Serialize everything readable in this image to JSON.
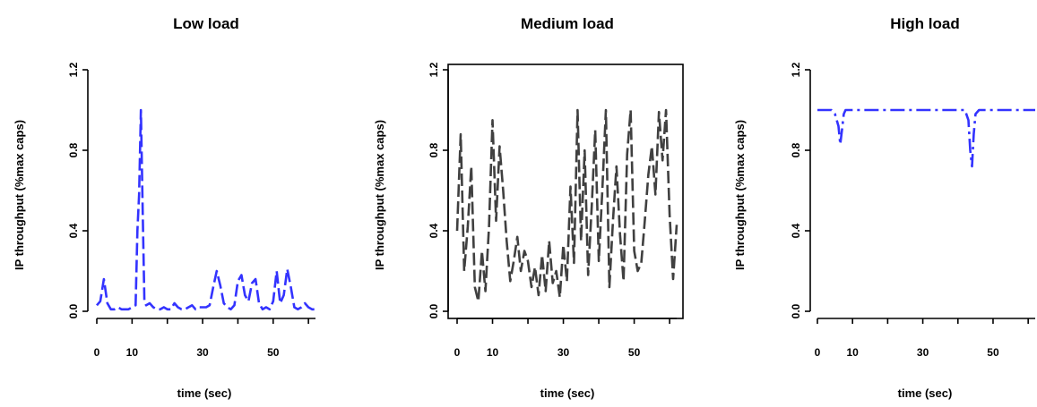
{
  "chart_data": [
    {
      "type": "line",
      "title": "Low load",
      "xlabel": "time (sec)",
      "ylabel": "IP throughput (%max caps)",
      "xlim": [
        0,
        62
      ],
      "ylim": [
        0,
        1.2
      ],
      "xticks": [
        0,
        10,
        30,
        50
      ],
      "yticks": [
        0.0,
        0.4,
        0.8,
        1.2
      ],
      "xtick_labels": [
        "0",
        "10",
        "30",
        "50"
      ],
      "ytick_labels": [
        "0.0",
        "0.4",
        "0.8",
        "1.2"
      ],
      "line_color": "#3333ff",
      "line_style": "dashed",
      "series": [
        {
          "x": [
            0,
            1,
            2,
            3,
            4,
            5,
            6,
            7,
            8,
            9,
            10,
            11,
            11.5,
            12,
            12.5,
            13,
            13.5,
            14,
            15,
            16,
            17,
            18,
            19,
            20,
            21,
            22,
            23,
            24,
            25,
            26,
            27,
            28,
            29,
            30,
            31,
            32,
            33,
            34,
            35,
            36,
            37,
            38,
            39,
            40,
            41,
            42,
            43,
            44,
            45,
            46,
            47,
            48,
            49,
            50,
            51,
            52,
            53,
            54,
            55,
            56,
            57,
            58,
            59,
            60,
            61,
            62
          ],
          "values": [
            0.03,
            0.05,
            0.16,
            0.04,
            0.01,
            0.01,
            0.02,
            0.01,
            0.01,
            0.01,
            0.02,
            0.03,
            0.4,
            0.58,
            1.0,
            0.5,
            0.05,
            0.03,
            0.04,
            0.02,
            0.01,
            0.01,
            0.02,
            0.01,
            0.01,
            0.04,
            0.02,
            0.01,
            0.01,
            0.02,
            0.03,
            0.01,
            0.02,
            0.02,
            0.02,
            0.03,
            0.12,
            0.2,
            0.13,
            0.04,
            0.02,
            0.01,
            0.03,
            0.15,
            0.18,
            0.08,
            0.05,
            0.14,
            0.16,
            0.04,
            0.01,
            0.02,
            0.01,
            0.05,
            0.2,
            0.04,
            0.08,
            0.21,
            0.12,
            0.02,
            0.01,
            0.02,
            0.04,
            0.02,
            0.01,
            0.01
          ]
        }
      ]
    },
    {
      "type": "line",
      "title": "Medium load",
      "xlabel": "time (sec)",
      "ylabel": "IP throughput (%max caps)",
      "xlim": [
        0,
        62
      ],
      "ylim": [
        0,
        1.2
      ],
      "xticks": [
        0,
        10,
        30,
        50
      ],
      "yticks": [
        0.0,
        0.4,
        0.8,
        1.2
      ],
      "xtick_labels": [
        "0",
        "10",
        "30",
        "50"
      ],
      "ytick_labels": [
        "0.0",
        "0.4",
        "0.8",
        "1.2"
      ],
      "line_color": "#404040",
      "line_style": "dashed",
      "boxed": true,
      "series": [
        {
          "x": [
            0,
            1,
            2,
            3,
            4,
            5,
            6,
            7,
            8,
            9,
            10,
            11,
            12,
            13,
            14,
            15,
            16,
            17,
            18,
            19,
            20,
            21,
            22,
            23,
            24,
            25,
            26,
            27,
            28,
            29,
            30,
            31,
            32,
            33,
            34,
            35,
            36,
            37,
            38,
            39,
            40,
            41,
            42,
            43,
            44,
            45,
            46,
            47,
            48,
            49,
            50,
            51,
            52,
            53,
            54,
            55,
            56,
            57,
            58,
            59,
            60,
            61,
            62
          ],
          "values": [
            0.4,
            0.88,
            0.2,
            0.42,
            0.72,
            0.12,
            0.05,
            0.3,
            0.1,
            0.42,
            0.95,
            0.45,
            0.82,
            0.6,
            0.35,
            0.15,
            0.25,
            0.37,
            0.2,
            0.3,
            0.25,
            0.12,
            0.22,
            0.08,
            0.28,
            0.1,
            0.35,
            0.14,
            0.2,
            0.07,
            0.33,
            0.15,
            0.62,
            0.24,
            1.0,
            0.35,
            0.8,
            0.18,
            0.52,
            0.9,
            0.25,
            0.6,
            1.0,
            0.12,
            0.45,
            0.72,
            0.38,
            0.15,
            0.78,
            1.0,
            0.3,
            0.2,
            0.24,
            0.45,
            0.68,
            0.82,
            0.58,
            0.99,
            0.75,
            1.0,
            0.48,
            0.16,
            0.43
          ]
        }
      ]
    },
    {
      "type": "line",
      "title": "High load",
      "xlabel": "time (sec)",
      "ylabel": "IP throughput (%max caps)",
      "xlim": [
        0,
        62
      ],
      "ylim": [
        0,
        1.2
      ],
      "xticks": [
        0,
        10,
        30,
        50
      ],
      "yticks": [
        0.0,
        0.4,
        0.8,
        1.2
      ],
      "xtick_labels": [
        "0",
        "10",
        "30",
        "50"
      ],
      "ytick_labels": [
        "0.0",
        "0.4",
        "0.8",
        "1.2"
      ],
      "line_color": "#3333ff",
      "line_style": "dashdot",
      "series": [
        {
          "x": [
            0,
            2,
            4,
            5,
            6,
            6.5,
            7,
            7.5,
            8,
            9,
            10,
            20,
            30,
            40,
            42,
            43,
            43.5,
            44,
            44.5,
            45,
            46,
            50,
            55,
            60,
            62
          ],
          "values": [
            1.0,
            1.0,
            1.0,
            0.98,
            0.92,
            0.83,
            0.9,
            0.98,
            1.0,
            1.0,
            1.0,
            1.0,
            1.0,
            1.0,
            1.0,
            0.95,
            0.8,
            0.72,
            0.88,
            0.98,
            1.0,
            1.0,
            1.0,
            1.0,
            1.0
          ]
        }
      ]
    }
  ]
}
